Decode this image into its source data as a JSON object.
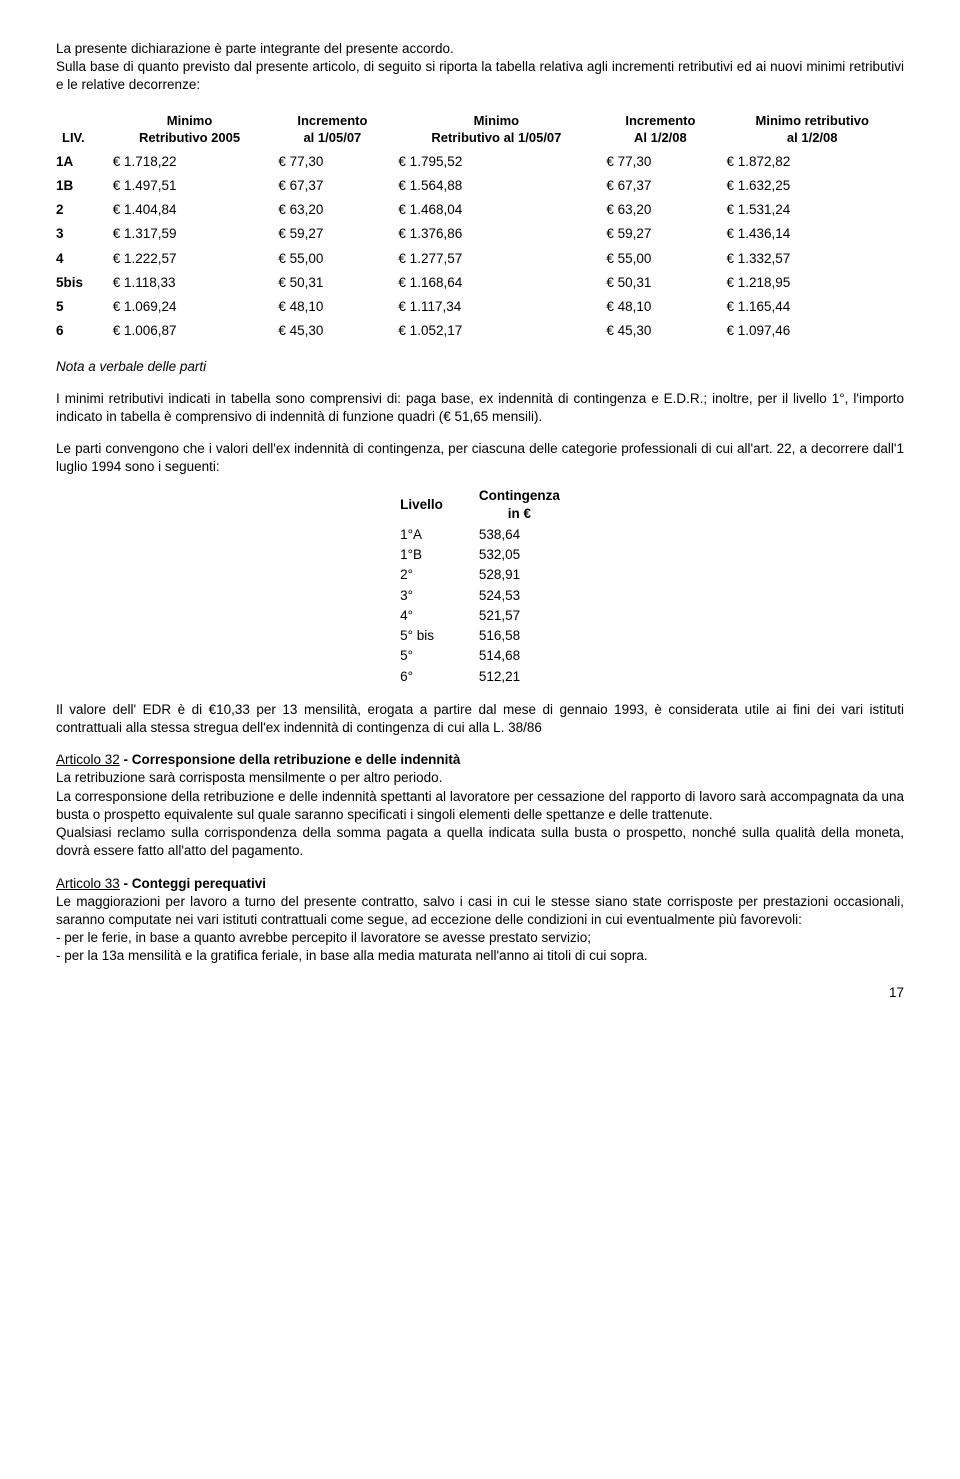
{
  "intro": {
    "line1": "La presente dichiarazione è parte integrante del presente accordo.",
    "line2": "Sulla base di quanto previsto dal presente articolo, di seguito si riporta la tabella relativa agli incrementi retributivi ed ai nuovi minimi retributivi e le relative decorrenze:"
  },
  "wage_table": {
    "headers": {
      "liv": "LIV.",
      "min2005_l1": "Minimo",
      "min2005_l2": "Retributivo 2005",
      "inc0507_l1": "Incremento",
      "inc0507_l2": "al 1/05/07",
      "min0507_l1": "Minimo",
      "min0507_l2": "Retributivo al 1/05/07",
      "inc0208_l1": "Incremento",
      "inc0208_l2": "Al 1/2/08",
      "min0208_l1": "Minimo retributivo",
      "min0208_l2": "al 1/2/08"
    },
    "rows": [
      {
        "liv": "1A",
        "a": "€ 1.718,22",
        "b": "€ 77,30",
        "c": "€ 1.795,52",
        "d": "€ 77,30",
        "e": "€ 1.872,82"
      },
      {
        "liv": "1B",
        "a": "€ 1.497,51",
        "b": "€ 67,37",
        "c": "€ 1.564,88",
        "d": "€ 67,37",
        "e": "€ 1.632,25"
      },
      {
        "liv": "2",
        "a": "€ 1.404,84",
        "b": "€ 63,20",
        "c": "€ 1.468,04",
        "d": "€ 63,20",
        "e": "€ 1.531,24"
      },
      {
        "liv": "3",
        "a": "€ 1.317,59",
        "b": "€ 59,27",
        "c": "€ 1.376,86",
        "d": "€ 59,27",
        "e": "€ 1.436,14"
      },
      {
        "liv": "4",
        "a": "€ 1.222,57",
        "b": "€ 55,00",
        "c": "€ 1.277,57",
        "d": "€ 55,00",
        "e": "€ 1.332,57"
      },
      {
        "liv": "5bis",
        "a": "€ 1.118,33",
        "b": "€ 50,31",
        "c": "€ 1.168,64",
        "d": "€ 50,31",
        "e": "€ 1.218,95"
      },
      {
        "liv": "5",
        "a": "€ 1.069,24",
        "b": "€ 48,10",
        "c": "€ 1.117,34",
        "d": "€ 48,10",
        "e": "€ 1.165,44"
      },
      {
        "liv": "6",
        "a": "€ 1.006,87",
        "b": "€ 45,30",
        "c": "€ 1.052,17",
        "d": "€ 45,30",
        "e": "€ 1.097,46"
      }
    ]
  },
  "nota_title": "Nota a verbale delle parti",
  "nota_p1": "I minimi retributivi indicati in tabella sono comprensivi di: paga base, ex indennità di contingenza e E.D.R.; inoltre, per il livello 1°, l'importo indicato in tabella è comprensivo di indennità di funzione quadri (€ 51,65 mensili).",
  "nota_p2": "Le parti convengono che i valori dell'ex indennità di contingenza, per ciascuna delle categorie professionali di cui all'art. 22, a decorrere dall'1 luglio 1994 sono i seguenti:",
  "conting_table": {
    "h1": "Livello",
    "h2_l1": "Contingenza",
    "h2_l2": "in €",
    "rows": [
      {
        "liv": "1°A",
        "val": "538,64"
      },
      {
        "liv": "1°B",
        "val": "532,05"
      },
      {
        "liv": "2°",
        "val": "528,91"
      },
      {
        "liv": "3°",
        "val": "524,53"
      },
      {
        "liv": "4°",
        "val": "521,57"
      },
      {
        "liv": "5° bis",
        "val": "516,58"
      },
      {
        "liv": "5°",
        "val": "514,68"
      },
      {
        "liv": "6°",
        "val": "512,21"
      }
    ]
  },
  "edr": "Il valore dell' EDR è di €10,33 per 13 mensilità, erogata a partire dal mese di gennaio 1993, è considerata utile ai fini dei vari istituti contrattuali alla stessa stregua dell'ex indennità di contingenza di cui alla L. 38/86",
  "art32": {
    "title_u": "Articolo 32",
    "title_rest": " - Corresponsione della retribuzione e delle indennità",
    "p1": "La retribuzione sarà corrisposta mensilmente o per altro periodo.",
    "p2": "La corresponsione della retribuzione e delle indennità spettanti al lavoratore per cessazione del rapporto di lavoro sarà accompagnata da una busta o prospetto equivalente sul quale saranno specificati i singoli elementi delle spettanze e delle trattenute.",
    "p3": "Qualsiasi reclamo sulla corrispondenza della somma pagata a quella indicata sulla busta o prospetto, nonché sulla qualità della moneta, dovrà essere fatto all'atto del pagamento."
  },
  "art33": {
    "title_u": "Articolo 33",
    "title_rest": " - Conteggi perequativi",
    "p1": "Le maggiorazioni per lavoro a turno del presente contratto, salvo i casi in cui le stesse siano state corrisposte per prestazioni occasionali, saranno computate nei vari istituti contrattuali come segue, ad eccezione delle condizioni in cui eventualmente più favorevoli:",
    "b1": "- per le ferie, in base a quanto avrebbe percepito il lavoratore se avesse prestato servizio;",
    "b2": "- per la 13a mensilità e la gratifica feriale, in base alla media maturata nell'anno ai titoli di cui sopra."
  },
  "pagenum": "17"
}
